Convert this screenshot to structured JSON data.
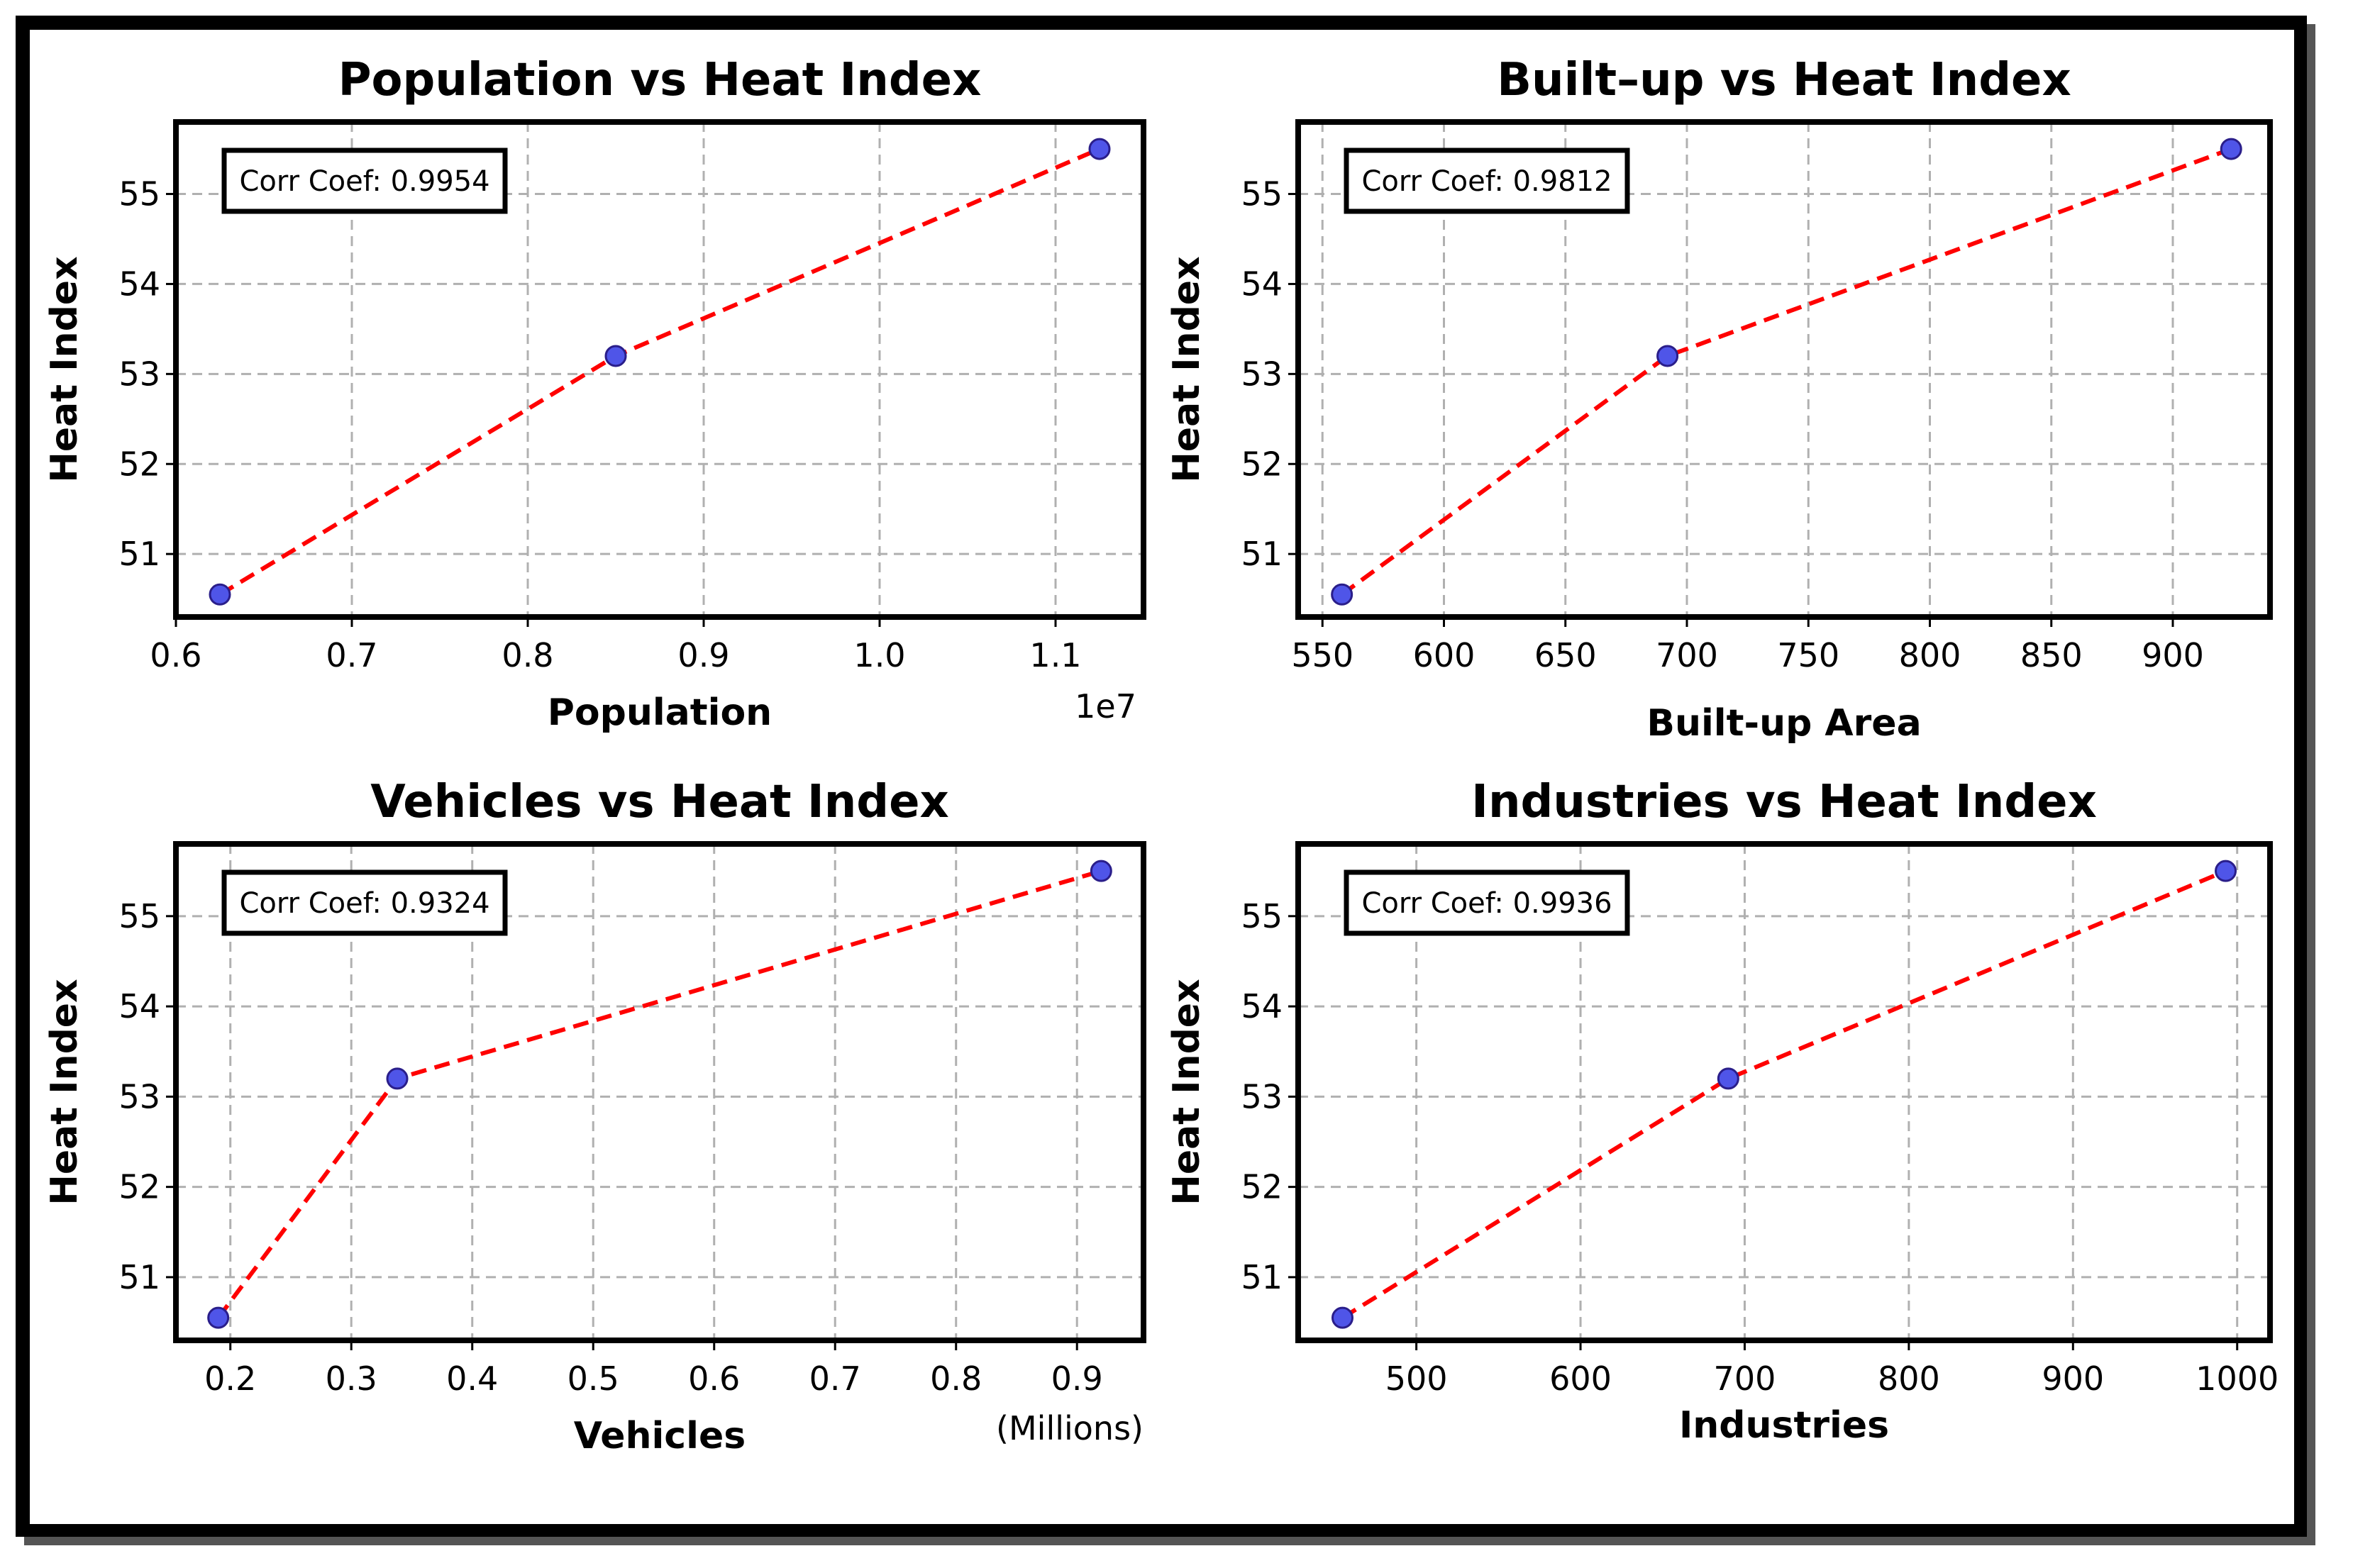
{
  "colors": {
    "line": "#ff0000",
    "marker_fill": "#4f55e8",
    "marker_edge": "#2a1e8a",
    "grid": "#b0b0b0",
    "frame": "#000000"
  },
  "chart_data": [
    {
      "type": "line",
      "title": "Population vs Heat Index",
      "xlabel": "Population",
      "ylabel": "Heat Index",
      "x_offset_label": "1e7",
      "x": [
        0.625,
        0.85,
        1.125
      ],
      "y": [
        50.55,
        53.2,
        55.5
      ],
      "xlim": [
        0.6,
        1.15
      ],
      "ylim": [
        50.3,
        55.8
      ],
      "xticks": [
        0.6,
        0.7,
        0.8,
        0.9,
        1.0,
        1.1
      ],
      "xtick_labels": [
        "0.6",
        "0.7",
        "0.8",
        "0.9",
        "1.0",
        "1.1"
      ],
      "yticks": [
        51,
        52,
        53,
        54,
        55
      ],
      "ytick_labels": [
        "51",
        "52",
        "53",
        "54",
        "55"
      ],
      "annotation": "Corr Coef: 0.9954"
    },
    {
      "type": "line",
      "title": "Built–up vs Heat Index",
      "xlabel": "Built-up Area",
      "ylabel": "Heat Index",
      "x": [
        558,
        692,
        924
      ],
      "y": [
        50.55,
        53.2,
        55.5
      ],
      "xlim": [
        540,
        940
      ],
      "ylim": [
        50.3,
        55.8
      ],
      "xticks": [
        550,
        600,
        650,
        700,
        750,
        800,
        850,
        900
      ],
      "xtick_labels": [
        "550",
        "600",
        "650",
        "700",
        "750",
        "800",
        "850",
        "900"
      ],
      "yticks": [
        51,
        52,
        53,
        54,
        55
      ],
      "ytick_labels": [
        "51",
        "52",
        "53",
        "54",
        "55"
      ],
      "annotation": "Corr Coef: 0.9812"
    },
    {
      "type": "line",
      "title": "Vehicles vs Heat Index",
      "xlabel": "Vehicles",
      "ylabel": "Heat Index",
      "x_offset_label": "(Millions)",
      "x": [
        0.19,
        0.338,
        0.92
      ],
      "y": [
        50.55,
        53.2,
        55.5
      ],
      "xlim": [
        0.155,
        0.955
      ],
      "ylim": [
        50.3,
        55.8
      ],
      "xticks": [
        0.2,
        0.3,
        0.4,
        0.5,
        0.6,
        0.7,
        0.8,
        0.9
      ],
      "xtick_labels": [
        "0.2",
        "0.3",
        "0.4",
        "0.5",
        "0.6",
        "0.7",
        "0.8",
        "0.9"
      ],
      "yticks": [
        51,
        52,
        53,
        54,
        55
      ],
      "ytick_labels": [
        "51",
        "52",
        "53",
        "54",
        "55"
      ],
      "annotation": "Corr Coef: 0.9324"
    },
    {
      "type": "line",
      "title": "Industries vs Heat Index",
      "xlabel": "Industries",
      "ylabel": "Heat Index",
      "x": [
        455,
        690,
        993
      ],
      "y": [
        50.55,
        53.2,
        55.5
      ],
      "xlim": [
        428,
        1020
      ],
      "ylim": [
        50.3,
        55.8
      ],
      "xticks": [
        500,
        600,
        700,
        800,
        900,
        1000
      ],
      "xtick_labels": [
        "500",
        "600",
        "700",
        "800",
        "900",
        "1000"
      ],
      "yticks": [
        51,
        52,
        53,
        54,
        55
      ],
      "ytick_labels": [
        "51",
        "52",
        "53",
        "54",
        "55"
      ],
      "annotation": "Corr Coef: 0.9936"
    }
  ]
}
